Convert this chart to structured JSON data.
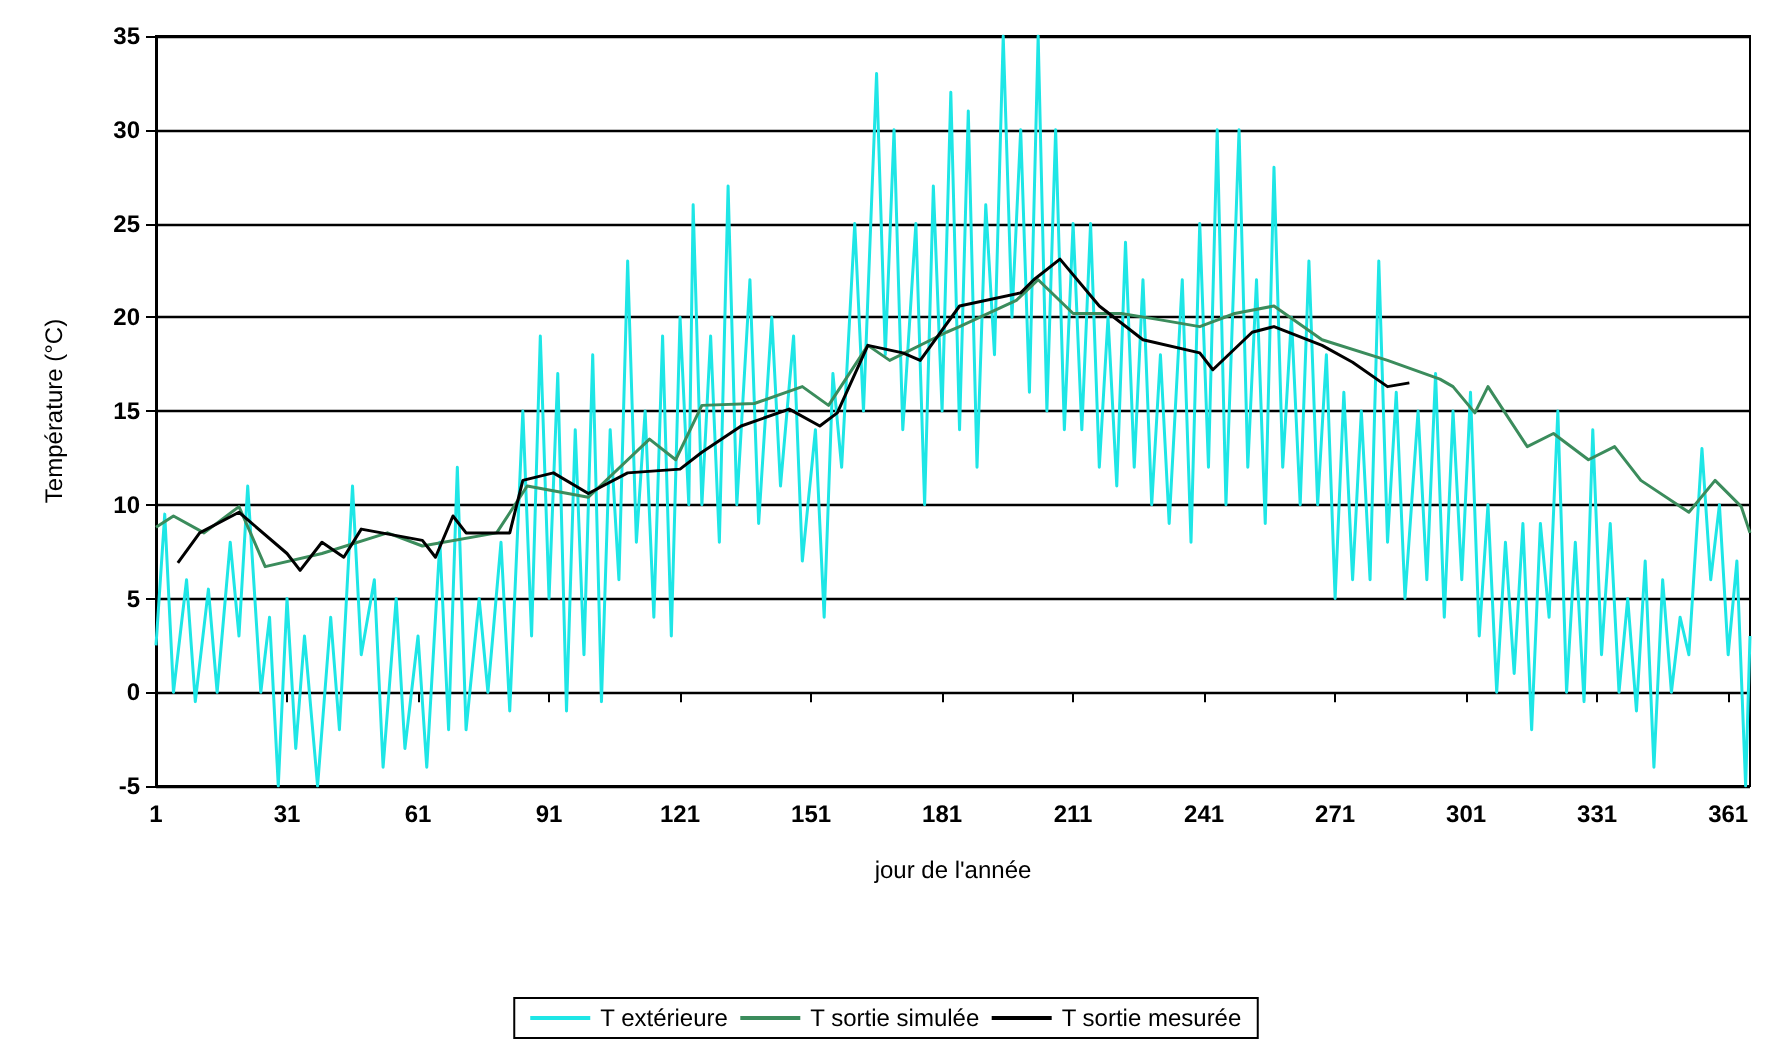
{
  "chart_data": {
    "type": "line",
    "xlabel": "jour de l'année",
    "ylabel": "Température (°C)",
    "xlim": [
      1,
      366
    ],
    "xticks": [
      1,
      31,
      61,
      91,
      121,
      151,
      181,
      211,
      241,
      271,
      301,
      331,
      361
    ],
    "ylim": [
      -5,
      35
    ],
    "yticks": [
      -5,
      0,
      5,
      10,
      15,
      20,
      25,
      30,
      35
    ],
    "grid": "y",
    "legend": "bottom",
    "series": [
      {
        "name": "T extérieure",
        "color": "#1ee6e6",
        "x": [
          1,
          3,
          5,
          8,
          10,
          13,
          15,
          18,
          20,
          22,
          25,
          27,
          29,
          31,
          33,
          35,
          38,
          41,
          43,
          46,
          48,
          51,
          53,
          56,
          58,
          61,
          63,
          66,
          68,
          70,
          72,
          75,
          77,
          80,
          82,
          85,
          87,
          89,
          91,
          93,
          95,
          97,
          99,
          101,
          103,
          105,
          107,
          109,
          111,
          113,
          115,
          117,
          119,
          121,
          123,
          124,
          126,
          128,
          130,
          132,
          134,
          137,
          139,
          142,
          144,
          147,
          149,
          152,
          154,
          156,
          158,
          161,
          163,
          166,
          168,
          170,
          172,
          175,
          177,
          179,
          181,
          183,
          185,
          187,
          189,
          191,
          193,
          195,
          197,
          199,
          201,
          203,
          205,
          207,
          209,
          211,
          213,
          215,
          217,
          219,
          221,
          223,
          225,
          227,
          229,
          231,
          233,
          236,
          238,
          240,
          242,
          244,
          246,
          249,
          251,
          253,
          255,
          257,
          259,
          261,
          263,
          265,
          267,
          269,
          271,
          273,
          275,
          277,
          279,
          281,
          283,
          285,
          287,
          290,
          292,
          294,
          296,
          298,
          300,
          302,
          304,
          306,
          308,
          310,
          312,
          314,
          316,
          318,
          320,
          322,
          324,
          326,
          328,
          330,
          332,
          334,
          336,
          338,
          340,
          342,
          344,
          346,
          348,
          350,
          352,
          355,
          357,
          359,
          361,
          363,
          365,
          366
        ],
        "values": [
          2.5,
          9.5,
          0,
          6,
          -0.5,
          5.5,
          0,
          8,
          3,
          11,
          0,
          4,
          -5,
          5,
          -3,
          3,
          -5,
          4,
          -2,
          11,
          2,
          6,
          -4,
          5,
          -3,
          3,
          -4,
          8,
          -2,
          12,
          -2,
          5,
          0,
          8,
          -1,
          15,
          3,
          19,
          5,
          17,
          -1,
          14,
          2,
          18,
          -0.5,
          14,
          6,
          23,
          8,
          15,
          4,
          19,
          3,
          20,
          10,
          26,
          10,
          19,
          8,
          27,
          10,
          22,
          9,
          20,
          11,
          19,
          7,
          14,
          4,
          17,
          12,
          25,
          15,
          33,
          18,
          30,
          14,
          25,
          10,
          27,
          15,
          32,
          14,
          31,
          12,
          26,
          18,
          35,
          20,
          30,
          16,
          35,
          15,
          30,
          14,
          25,
          14,
          25,
          12,
          20,
          11,
          24,
          12,
          22,
          10,
          18,
          9,
          22,
          8,
          25,
          12,
          30,
          10,
          30,
          12,
          22,
          9,
          28,
          12,
          20,
          10,
          23,
          10,
          18,
          5,
          16,
          6,
          15,
          6,
          23,
          8,
          16,
          5,
          15,
          6,
          17,
          4,
          15,
          6,
          16,
          3,
          10,
          0,
          8,
          1,
          9,
          -2,
          9,
          4,
          15,
          0,
          8,
          -0.5,
          14,
          2,
          9,
          0,
          5,
          -1,
          7,
          -4,
          6,
          0,
          4,
          2,
          13,
          6,
          10,
          2,
          7,
          -5,
          3
        ]
      },
      {
        "name": "T sortie simulée",
        "color": "#3b8c5c",
        "x": [
          1,
          5,
          12,
          20,
          26,
          39,
          54,
          62,
          79,
          86,
          100,
          114,
          120,
          126,
          138,
          149,
          155,
          164,
          169,
          182,
          185,
          198,
          203,
          211,
          222,
          230,
          240,
          248,
          257,
          268,
          283,
          295,
          298,
          303,
          306,
          315,
          321,
          329,
          335,
          341,
          352,
          358,
          364,
          366
        ],
        "values": [
          8.8,
          9.4,
          8.5,
          9.9,
          6.7,
          7.4,
          8.5,
          7.8,
          8.5,
          11,
          10.4,
          13.5,
          12.4,
          15.3,
          15.4,
          16.3,
          15.3,
          18.5,
          17.7,
          19.2,
          19.5,
          20.9,
          22,
          20.2,
          20.2,
          19.9,
          19.5,
          20.2,
          20.6,
          18.8,
          17.7,
          16.7,
          16.3,
          14.9,
          16.3,
          13.1,
          13.8,
          12.4,
          13.1,
          11.3,
          9.6,
          11.3,
          9.9,
          8.5
        ]
      },
      {
        "name": "T sortie mesurée",
        "color": "#000000",
        "x": [
          6,
          11,
          20,
          31,
          34,
          39,
          44,
          48,
          62,
          65,
          69,
          72,
          82,
          85,
          92,
          100,
          109,
          121,
          126,
          135,
          146,
          153,
          157,
          164,
          172,
          176,
          185,
          199,
          202,
          208,
          217,
          227,
          240,
          243,
          252,
          257,
          268,
          275,
          283,
          288
        ],
        "values": [
          6.9,
          8.5,
          9.6,
          7.4,
          6.5,
          8,
          7.2,
          8.7,
          8.1,
          7.2,
          9.4,
          8.5,
          8.5,
          11.3,
          11.7,
          10.6,
          11.7,
          11.9,
          12.8,
          14.2,
          15.1,
          14.2,
          14.9,
          18.5,
          18.1,
          17.7,
          20.6,
          21.3,
          22,
          23.1,
          20.6,
          18.8,
          18.1,
          17.2,
          19.2,
          19.5,
          18.5,
          17.6,
          16.3,
          16.5
        ]
      }
    ]
  }
}
